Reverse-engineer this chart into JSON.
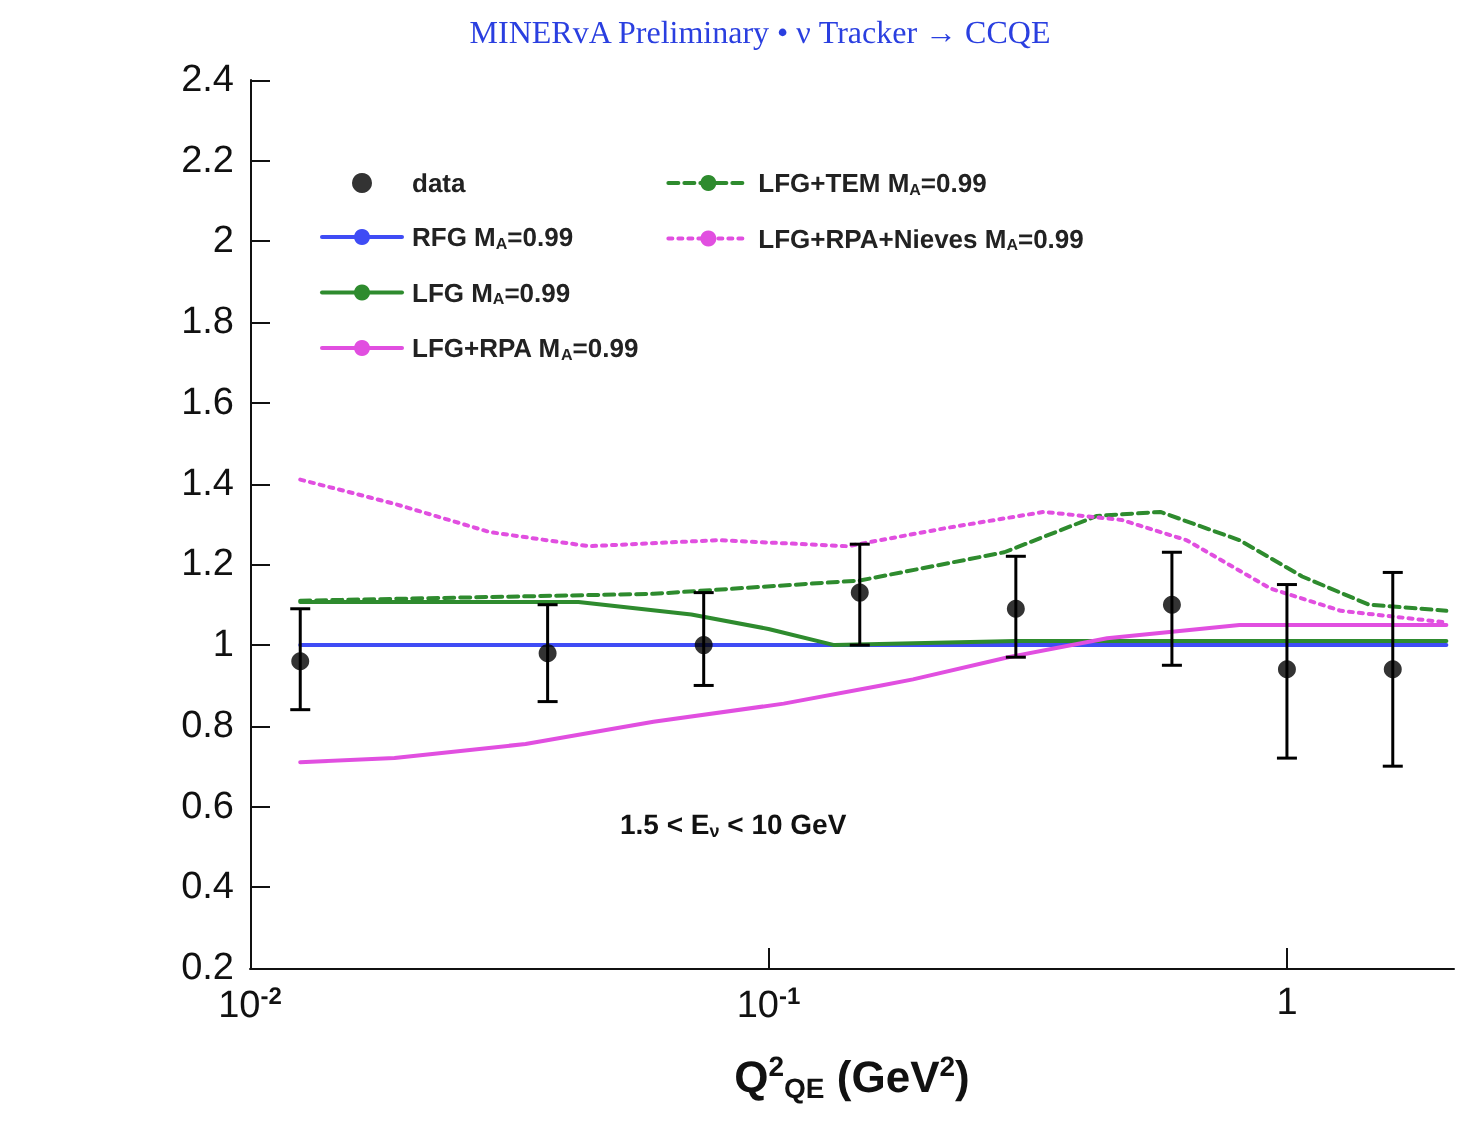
{
  "chart_data": {
    "type": "line",
    "title": "MINERvA Preliminary • ν Tracker → CCQE",
    "xlabel": "Q$^{2}$$_{QE}$ (GeV$^{2}$)",
    "annotations": [
      "1.5 < E$_{ν}$ < 10 GeV"
    ],
    "log": "x",
    "xlim": [
      0.01,
      2.1
    ],
    "xticks": [
      {
        "value": 0.01,
        "label": "10$^{-2}$"
      },
      {
        "value": 0.1,
        "label": "10$^{-1}$"
      },
      {
        "value": 1,
        "label": "1"
      }
    ],
    "ylim": [
      0.2,
      2.4
    ],
    "yticks": [
      0.2,
      0.4,
      0.6,
      0.8,
      1,
      1.2,
      1.4,
      1.6,
      1.8,
      2,
      2.2,
      2.4
    ],
    "grid": false,
    "legend": "top",
    "series": [
      {
        "name": "data",
        "type": "scatter",
        "marker": "circle",
        "color": "#000000",
        "x": [
          0.0125,
          0.0375,
          0.075,
          0.15,
          0.3,
          0.6,
          1,
          1.6
        ],
        "values": [
          0.96,
          0.98,
          1.0,
          1.13,
          1.09,
          1.1,
          0.94,
          0.94
        ],
        "errors": [
          [
            0.84,
            1.09
          ],
          [
            0.86,
            1.1
          ],
          [
            0.9,
            1.13
          ],
          [
            1.0,
            1.25
          ],
          [
            0.97,
            1.22
          ],
          [
            0.95,
            1.23
          ],
          [
            0.72,
            1.15
          ],
          [
            0.7,
            1.18
          ]
        ]
      },
      {
        "name": "RFG M$_{A}$=0.99",
        "color": "#3f4cf5",
        "line_style": "solid",
        "x": [
          0.0125,
          2.03
        ],
        "values": [
          1.0,
          1.0
        ]
      },
      {
        "name": "LFG M$_{A}$=0.99",
        "color": "#2e8b2e",
        "line_style": "solid",
        "x": [
          0.0125,
          0.043,
          0.071,
          0.1,
          0.134,
          0.3,
          1,
          2.03
        ],
        "values": [
          1.107,
          1.107,
          1.076,
          1.04,
          1.0,
          1.01,
          1.01,
          1.01
        ]
      },
      {
        "name": "LFG+RPA M$_{A}$=0.99",
        "color": "#e14fe0",
        "line_style": "solid",
        "x": [
          0.0125,
          0.019,
          0.034,
          0.06,
          0.107,
          0.165,
          0.19,
          0.29,
          0.45,
          0.81,
          2.03
        ],
        "values": [
          0.71,
          0.72,
          0.755,
          0.81,
          0.855,
          0.9,
          0.915,
          0.97,
          1.017,
          1.05,
          1.05
        ]
      },
      {
        "name": "LFG+TEM M$_{A}$=0.99",
        "color": "#2e8b2e",
        "line_style": "dashed",
        "x": [
          0.0125,
          0.06,
          0.15,
          0.285,
          0.43,
          0.57,
          0.81,
          1.07,
          1.44,
          2.03
        ],
        "values": [
          1.11,
          1.127,
          1.16,
          1.23,
          1.32,
          1.33,
          1.26,
          1.17,
          1.1,
          1.085
        ]
      },
      {
        "name": "LFG+RPA+Nieves M$_{A}$=0.99",
        "color": "#e14fe0",
        "line_style": "dotted",
        "x": [
          0.0125,
          0.019,
          0.029,
          0.045,
          0.08,
          0.142,
          0.22,
          0.34,
          0.48,
          0.64,
          0.93,
          1.27,
          2.03
        ],
        "values": [
          1.41,
          1.35,
          1.28,
          1.245,
          1.26,
          1.245,
          1.29,
          1.33,
          1.31,
          1.26,
          1.14,
          1.085,
          1.056
        ]
      }
    ]
  }
}
